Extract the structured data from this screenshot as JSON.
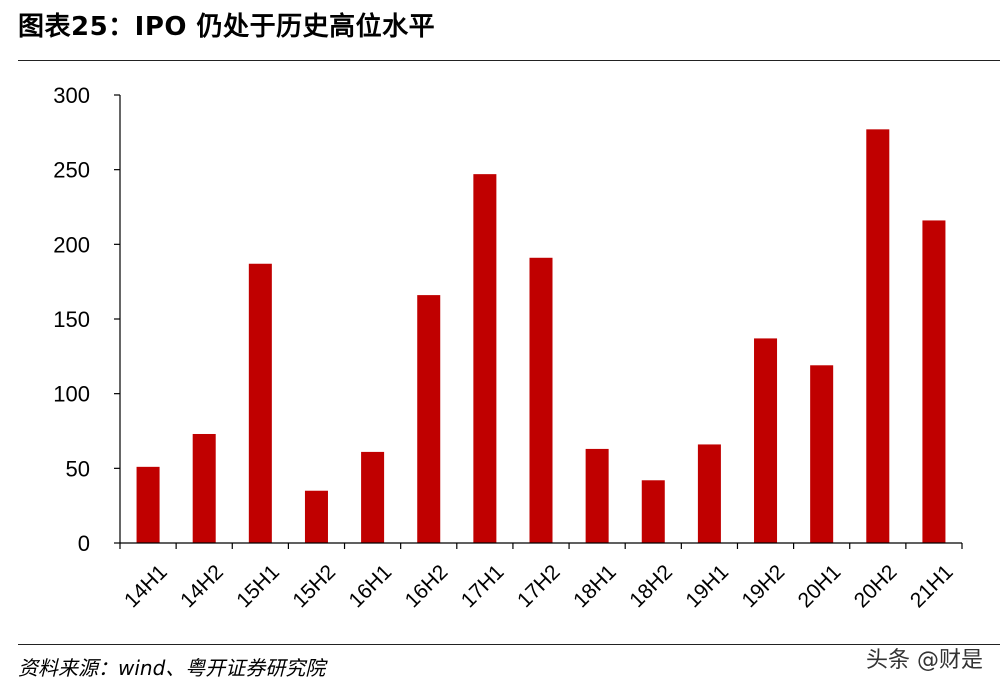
{
  "header": {
    "title": "图表25：IPO 仍处于历史高位水平"
  },
  "footer": {
    "source": "资料来源：wind、粤开证券研究院",
    "watermark": "头条 @财是"
  },
  "chart_data": {
    "type": "bar",
    "categories": [
      "14H1",
      "14H2",
      "15H1",
      "15H2",
      "16H1",
      "16H2",
      "17H1",
      "17H2",
      "18H1",
      "18H2",
      "19H1",
      "19H2",
      "20H1",
      "20H2",
      "21H1"
    ],
    "values": [
      51,
      73,
      187,
      35,
      61,
      166,
      247,
      191,
      63,
      42,
      66,
      137,
      119,
      277,
      216
    ],
    "ylim": [
      0,
      300
    ],
    "yticks": [
      0,
      50,
      100,
      150,
      200,
      250,
      300
    ],
    "bar_color": "#C00000",
    "grid": false,
    "legend": "none"
  }
}
